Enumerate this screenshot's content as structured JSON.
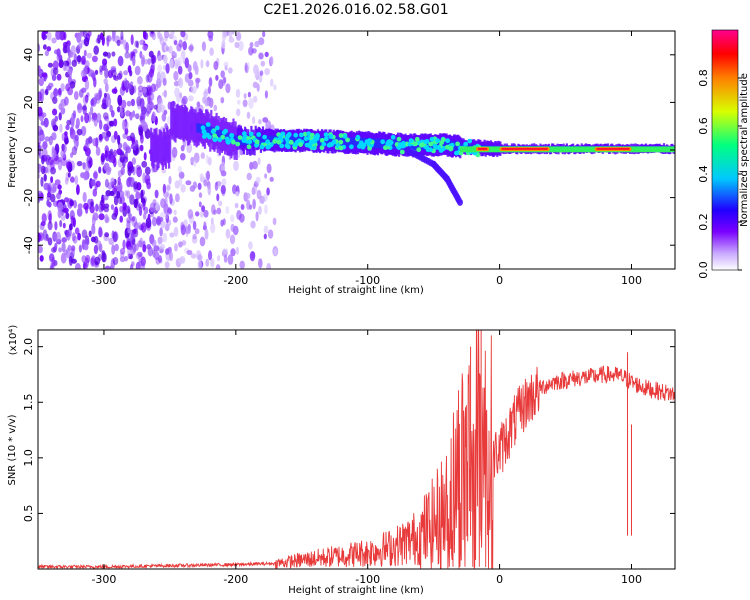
{
  "figure_title": "C2E1.2026.016.02.58.G01",
  "chart_data": [
    {
      "type": "heatmap",
      "title": "C2E1.2026.016.02.58.G01",
      "xlabel": "Height of straight line (km)",
      "ylabel": "Frequency (Hz)",
      "xlim": [
        -350,
        133
      ],
      "ylim": [
        -50,
        50
      ],
      "xticks": [
        -300,
        -200,
        -100,
        0,
        100
      ],
      "yticks": [
        -40,
        -20,
        0,
        20,
        40
      ],
      "colorbar": {
        "label": "Normalized spectral amplitude",
        "range": [
          0,
          1
        ],
        "ticks": [
          "0.0",
          "0.2",
          "0.4",
          "0.6",
          "0.8"
        ],
        "stops": [
          "#ffffff",
          "#c8a8ff",
          "#7a00ff",
          "#2000ff",
          "#00c8ff",
          "#00ff80",
          "#d8ff00",
          "#ff8000",
          "#ff0000",
          "#ff0090"
        ]
      },
      "description_series": {
        "scattered_noise_region_km": [
          -350,
          -175
        ],
        "main_band_centre_hz": [
          [
            -250,
            12
          ],
          [
            -220,
            8
          ],
          [
            -200,
            4
          ],
          [
            -150,
            4
          ],
          [
            -100,
            3
          ],
          [
            -70,
            2
          ],
          [
            -40,
            2
          ],
          [
            -20,
            1
          ],
          [
            0,
            0.5
          ],
          [
            50,
            0.5
          ],
          [
            100,
            0.5
          ],
          [
            133,
            0.5
          ]
        ],
        "curving_branch_hz": [
          [
            -70,
            0
          ],
          [
            -50,
            -6
          ],
          [
            -40,
            -12
          ],
          [
            -30,
            -22
          ]
        ]
      }
    },
    {
      "type": "line",
      "xlabel": "Height of straight line (km)",
      "ylabel": "SNR (10 * v/v)",
      "scale_label": "(x10⁴)",
      "xlim": [
        -350,
        133
      ],
      "ylim": [
        0,
        2.15
      ],
      "xticks": [
        -300,
        -200,
        -100,
        0,
        100
      ],
      "yticks": [
        "0.5",
        "1.0",
        "1.5",
        "2.0"
      ],
      "series": [
        {
          "name": "SNR",
          "color": "#e83a3a",
          "x": [
            -350,
            -300,
            -250,
            -200,
            -170,
            -150,
            -120,
            -100,
            -80,
            -60,
            -50,
            -40,
            -30,
            -20,
            -15,
            -10,
            0,
            10,
            20,
            30,
            40,
            50,
            60,
            70,
            80,
            90,
            95,
            100,
            110,
            120,
            133
          ],
          "y": [
            0.02,
            0.02,
            0.03,
            0.04,
            0.05,
            0.08,
            0.12,
            0.15,
            0.2,
            0.3,
            0.4,
            0.55,
            0.9,
            1.1,
            1.25,
            1.0,
            1.05,
            1.3,
            1.5,
            1.62,
            1.68,
            1.7,
            1.72,
            1.73,
            1.75,
            1.74,
            1.72,
            1.68,
            1.63,
            1.6,
            1.57
          ]
        }
      ]
    }
  ]
}
